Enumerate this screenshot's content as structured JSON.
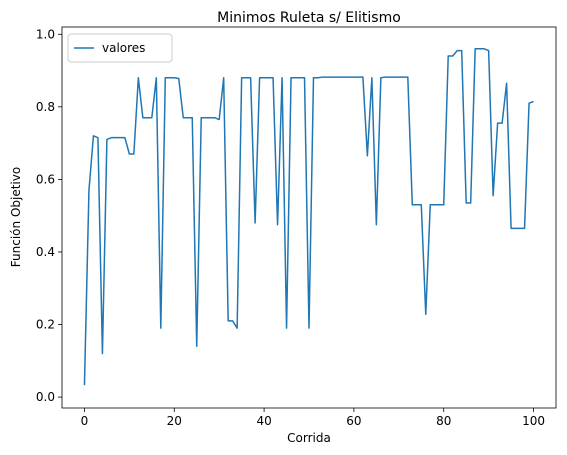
{
  "chart_data": {
    "type": "line",
    "title": "Minimos Ruleta s/ Elitismo",
    "x_label": "Corrida",
    "y_label": "Función Objetivo",
    "x": [
      0,
      1,
      2,
      3,
      4,
      5,
      6,
      7,
      8,
      9,
      10,
      11,
      12,
      13,
      14,
      15,
      16,
      17,
      18,
      19,
      20,
      21,
      22,
      23,
      24,
      25,
      26,
      27,
      28,
      29,
      30,
      31,
      32,
      33,
      34,
      35,
      36,
      37,
      38,
      39,
      40,
      41,
      42,
      43,
      44,
      45,
      46,
      47,
      48,
      49,
      50,
      51,
      52,
      53,
      54,
      55,
      56,
      57,
      58,
      59,
      60,
      61,
      62,
      63,
      64,
      65,
      66,
      67,
      68,
      69,
      70,
      71,
      72,
      73,
      74,
      75,
      76,
      77,
      78,
      79,
      80,
      81,
      82,
      83,
      84,
      85,
      86,
      87,
      88,
      89,
      90,
      91,
      92,
      93,
      94,
      95,
      96,
      97,
      98,
      99,
      100
    ],
    "series": [
      {
        "name": "valores",
        "color": "#1f77b4",
        "values": [
          0.033,
          0.57,
          0.72,
          0.715,
          0.12,
          0.71,
          0.715,
          0.715,
          0.715,
          0.715,
          0.67,
          0.67,
          0.88,
          0.77,
          0.77,
          0.77,
          0.88,
          0.19,
          0.88,
          0.88,
          0.88,
          0.878,
          0.77,
          0.77,
          0.77,
          0.14,
          0.77,
          0.77,
          0.77,
          0.77,
          0.765,
          0.88,
          0.21,
          0.21,
          0.19,
          0.88,
          0.88,
          0.88,
          0.48,
          0.88,
          0.88,
          0.88,
          0.88,
          0.475,
          0.88,
          0.19,
          0.88,
          0.88,
          0.88,
          0.88,
          0.19,
          0.88,
          0.88,
          0.882,
          0.882,
          0.882,
          0.882,
          0.882,
          0.882,
          0.882,
          0.882,
          0.882,
          0.882,
          0.665,
          0.88,
          0.475,
          0.88,
          0.882,
          0.882,
          0.882,
          0.882,
          0.882,
          0.882,
          0.53,
          0.53,
          0.53,
          0.228,
          0.53,
          0.53,
          0.53,
          0.53,
          0.94,
          0.94,
          0.955,
          0.955,
          0.535,
          0.535,
          0.96,
          0.96,
          0.96,
          0.955,
          0.555,
          0.755,
          0.755,
          0.865,
          0.465,
          0.465,
          0.465,
          0.465,
          0.81,
          0.815
        ]
      }
    ],
    "xlim": [
      -5,
      105
    ],
    "xticks": [
      0,
      20,
      40,
      60,
      80,
      100
    ],
    "ylim": [
      -0.03,
      1.02
    ],
    "yticks": [
      {
        "value": 0,
        "label": "0.0"
      },
      {
        "value": 0.2,
        "label": "0.2"
      },
      {
        "value": 0.4,
        "label": "0.4"
      },
      {
        "value": 0.6,
        "label": "0.6"
      },
      {
        "value": 0.8,
        "label": "0.8"
      },
      {
        "value": 1,
        "label": "1.0"
      }
    ],
    "legend": "upper left",
    "grid": false
  }
}
